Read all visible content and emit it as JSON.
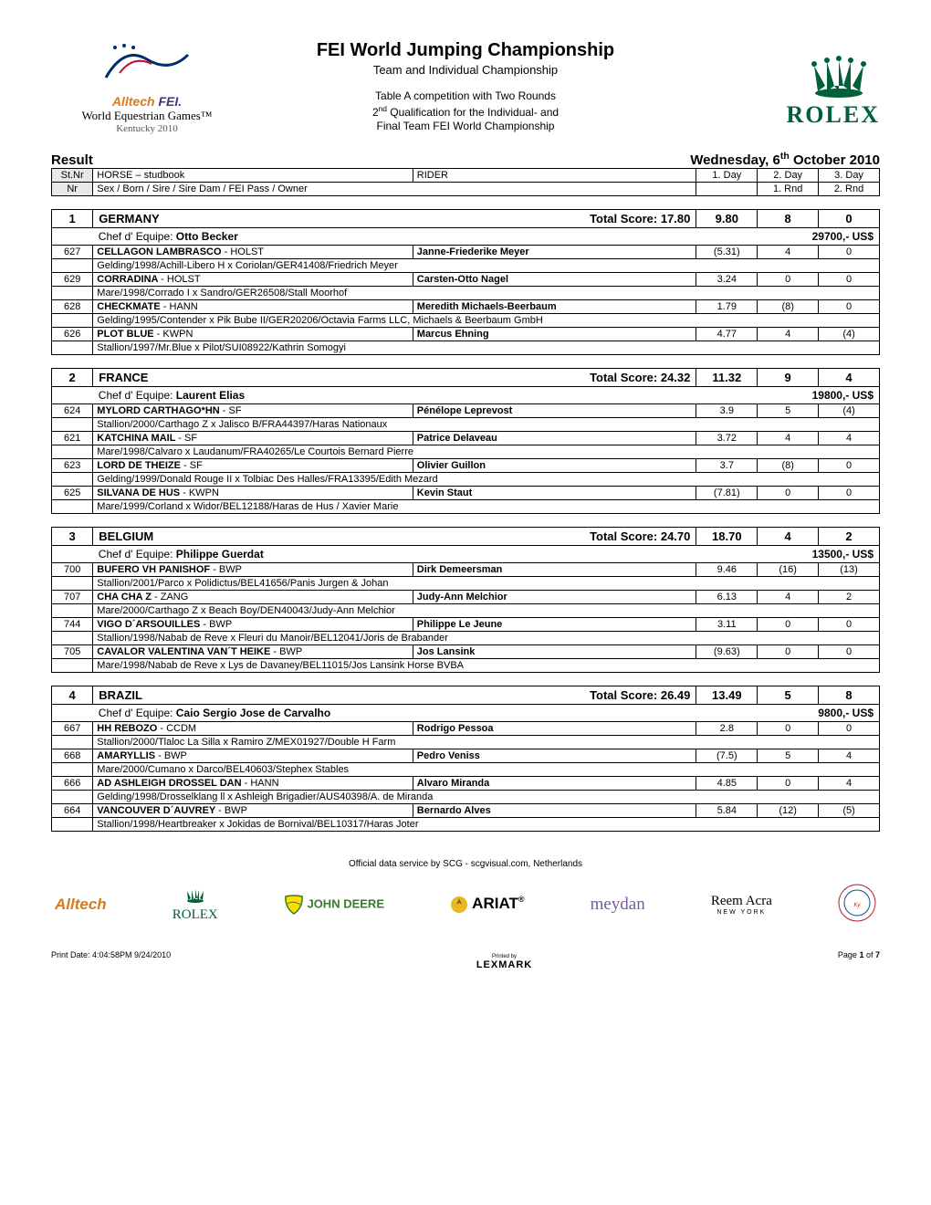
{
  "header": {
    "title": "FEI World Jumping Championship",
    "subtitle": "Team and Individual Championship",
    "desc1": "Table A competition with Two Rounds",
    "desc2_pre": "2",
    "desc2_sup": "nd",
    "desc2_post": " Qualification for the Individual- and",
    "desc3": "Final Team FEI World Championship",
    "left_logo_line1": "Alltech FEI",
    "left_logo_line2": "World Equestrian Games™",
    "left_logo_line3": "Kentucky 2010",
    "right_logo": "ROLEX"
  },
  "result_label": "Result",
  "result_date_pre": "Wednesday, 6",
  "result_date_sup": "th",
  "result_date_post": " October 2010",
  "columns": {
    "stnr": "St.Nr",
    "horse": "HORSE  – studbook",
    "rider": "RIDER",
    "day1": "1. Day",
    "day2": "2. Day",
    "day3": "3. Day",
    "nr": "Nr",
    "detail": "Sex /   Born / Sire / Sire Dam / FEI Pass / Owner",
    "rnd1": "1. Rnd",
    "rnd2": "2. Rnd"
  },
  "total_score_label": "Total Score: ",
  "chef_label": "Chef d' Equipe: ",
  "teams": [
    {
      "rank": "1",
      "country": "GERMANY",
      "total": "17.80",
      "d1": "9.80",
      "d2": "8",
      "d3": "0",
      "chef": "Otto Becker",
      "prize": "29700,- US$",
      "entries": [
        {
          "nr": "627",
          "horse": "CELLAGON LAMBRASCO",
          "stud": "HOLST",
          "rider": "Janne-Friederike Meyer",
          "s1": "(5.31)",
          "s2": "4",
          "s3": "0",
          "detail": "Gelding/1998/Achill-Libero H x Coriolan/GER41408/Friedrich Meyer"
        },
        {
          "nr": "629",
          "horse": "CORRADINA",
          "stud": "HOLST",
          "rider": "Carsten-Otto Nagel",
          "s1": "3.24",
          "s2": "0",
          "s3": "0",
          "detail": "Mare/1998/Corrado I x Sandro/GER26508/Stall Moorhof"
        },
        {
          "nr": "628",
          "horse": "CHECKMATE",
          "stud": "HANN",
          "rider": "Meredith Michaels-Beerbaum",
          "s1": "1.79",
          "s2": "(8)",
          "s3": "0",
          "detail": "Gelding/1995/Contender x Pik Bube II/GER20206/Octavia Farms LLC, Michaels & Beerbaum GmbH"
        },
        {
          "nr": "626",
          "horse": "PLOT BLUE",
          "stud": "KWPN",
          "rider": "Marcus Ehning",
          "s1": "4.77",
          "s2": "4",
          "s3": "(4)",
          "detail": "Stallion/1997/Mr.Blue x Pilot/SUI08922/Kathrin Somogyi"
        }
      ]
    },
    {
      "rank": "2",
      "country": "FRANCE",
      "total": "24.32",
      "d1": "11.32",
      "d2": "9",
      "d3": "4",
      "chef": "Laurent Elias",
      "prize": "19800,- US$",
      "entries": [
        {
          "nr": "624",
          "horse": "MYLORD CARTHAGO*HN",
          "stud": "SF",
          "rider": "Pénélope Leprevost",
          "s1": "3.9",
          "s2": "5",
          "s3": "(4)",
          "detail": "Stallion/2000/Carthago Z x Jalisco B/FRA44397/Haras Nationaux"
        },
        {
          "nr": "621",
          "horse": "KATCHINA MAIL",
          "stud": "SF",
          "rider": "Patrice Delaveau",
          "s1": "3.72",
          "s2": "4",
          "s3": "4",
          "detail": "Mare/1998/Calvaro x Laudanum/FRA40265/Le Courtois Bernard Pierre"
        },
        {
          "nr": "623",
          "horse": "LORD DE THEIZE",
          "stud": "SF",
          "rider": "Olivier Guillon",
          "s1": "3.7",
          "s2": "(8)",
          "s3": "0",
          "detail": "Gelding/1999/Donald Rouge II x Tolbiac Des Halles/FRA13395/Edith Mezard"
        },
        {
          "nr": "625",
          "horse": "SILVANA DE HUS",
          "stud": "KWPN",
          "rider": "Kevin Staut",
          "s1": "(7.81)",
          "s2": "0",
          "s3": "0",
          "detail": "Mare/1999/Corland x Widor/BEL12188/Haras de Hus / Xavier Marie"
        }
      ]
    },
    {
      "rank": "3",
      "country": "BELGIUM",
      "total": "24.70",
      "d1": "18.70",
      "d2": "4",
      "d3": "2",
      "chef": "Philippe Guerdat",
      "prize": "13500,- US$",
      "entries": [
        {
          "nr": "700",
          "horse": "BUFERO VH PANISHOF",
          "stud": "BWP",
          "rider": "Dirk Demeersman",
          "s1": "9.46",
          "s2": "(16)",
          "s3": "(13)",
          "detail": "Stallion/2001/Parco x Polidictus/BEL41656/Panis Jurgen & Johan"
        },
        {
          "nr": "707",
          "horse": "CHA CHA Z",
          "stud": "ZANG",
          "rider": "Judy-Ann Melchior",
          "s1": "6.13",
          "s2": "4",
          "s3": "2",
          "detail": "Mare/2000/Carthago Z x Beach Boy/DEN40043/Judy-Ann Melchior"
        },
        {
          "nr": "744",
          "horse": "VIGO D´ARSOUILLES",
          "stud": "BWP",
          "rider": "Philippe Le Jeune",
          "s1": "3.11",
          "s2": "0",
          "s3": "0",
          "detail": "Stallion/1998/Nabab de Reve x Fleuri du Manoir/BEL12041/Joris de Brabander"
        },
        {
          "nr": "705",
          "horse": "CAVALOR VALENTINA VAN´T HEIKE",
          "stud": "BWP",
          "rider": "Jos Lansink",
          "s1": "(9.63)",
          "s2": "0",
          "s3": "0",
          "detail": "Mare/1998/Nabab de Reve x Lys de Davaney/BEL11015/Jos Lansink Horse BVBA"
        }
      ]
    },
    {
      "rank": "4",
      "country": "BRAZIL",
      "total": "26.49",
      "d1": "13.49",
      "d2": "5",
      "d3": "8",
      "chef": "Caio Sergio Jose de Carvalho",
      "prize": "9800,- US$",
      "entries": [
        {
          "nr": "667",
          "horse": "HH REBOZO",
          "stud": "CCDM",
          "rider": "Rodrigo Pessoa",
          "s1": "2.8",
          "s2": "0",
          "s3": "0",
          "detail": "Stallion/2000/Tlaloc La Silla x Ramiro Z/MEX01927/Double H Farm"
        },
        {
          "nr": "668",
          "horse": "AMARYLLIS",
          "stud": "BWP",
          "rider": "Pedro Veniss",
          "s1": "(7.5)",
          "s2": "5",
          "s3": "4",
          "detail": "Mare/2000/Cumano x Darco/BEL40603/Stephex Stables"
        },
        {
          "nr": "666",
          "horse": "AD ASHLEIGH DROSSEL DAN",
          "stud": "HANN",
          "rider": "Alvaro Miranda",
          "s1": "4.85",
          "s2": "0",
          "s3": "4",
          "detail": "Gelding/1998/Drosselklang ll x Ashleigh Brigadier/AUS40398/A. de Miranda"
        },
        {
          "nr": "664",
          "horse": "VANCOUVER D´AUVREY",
          "stud": "BWP",
          "rider": "Bernardo Alves",
          "s1": "5.84",
          "s2": "(12)",
          "s3": "(5)",
          "detail": "Stallion/1998/Heartbreaker x Jokidas de Bornival/BEL10317/Haras Joter"
        }
      ]
    }
  ],
  "footer_note": "Official data service by SCG - scgvisual.com, Netherlands",
  "sponsors": [
    "Alltech",
    "ROLEX",
    "JOHN DEERE",
    "ARIAT",
    "meydan",
    "Reem Acra",
    ""
  ],
  "sponsor_sub": [
    "",
    "",
    "",
    "",
    "",
    "NEW YORK",
    ""
  ],
  "print_date": "Print Date: 4:04:58PM 9/24/2010",
  "printed_by_label": "Printed by",
  "printed_by": "LEXMARK",
  "page_label": "Page ",
  "page_cur": "1",
  "page_of": " of ",
  "page_total": "7",
  "colors": {
    "header_bg": "#e8e8e8",
    "rolex_green": "#006039",
    "alltech_orange": "#d97b1a",
    "deere_green": "#367c2b",
    "ariat_brown": "#8c5a2b",
    "meydan_purple": "#7a5a9e",
    "reem_black": "#222"
  }
}
